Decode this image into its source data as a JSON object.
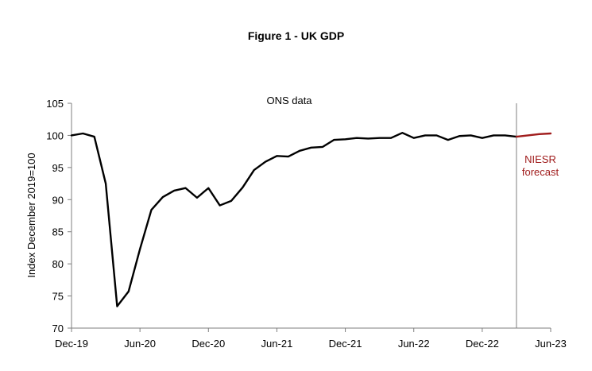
{
  "chart_data": {
    "type": "line",
    "title": "Figure 1 - UK GDP",
    "xlabel": "",
    "ylabel": "Index December 2019=100",
    "ylim": [
      70,
      105
    ],
    "yticks": [
      70,
      75,
      80,
      85,
      90,
      95,
      100,
      105
    ],
    "x_tick_labels": [
      "Dec-19",
      "Jun-20",
      "Dec-20",
      "Jun-21",
      "Dec-21",
      "Jun-22",
      "Dec-22",
      "Jun-23"
    ],
    "x_tick_months": [
      0,
      6,
      12,
      18,
      24,
      30,
      36,
      42
    ],
    "x_range_months": [
      0,
      42
    ],
    "divider_month": 39,
    "grid": false,
    "annotations": {
      "ons_label": "ONS data",
      "forecast_label_line1": "NIESR",
      "forecast_label_line2": "forecast"
    },
    "series": [
      {
        "name": "ONS data",
        "color": "#000000",
        "x_months": [
          0,
          1,
          2,
          3,
          4,
          5,
          6,
          7,
          8,
          9,
          10,
          11,
          12,
          13,
          14,
          15,
          16,
          17,
          18,
          19,
          20,
          21,
          22,
          23,
          24,
          25,
          26,
          27,
          28,
          29,
          30,
          31,
          32,
          33,
          34,
          35,
          36,
          37,
          38,
          39
        ],
        "values": [
          100.0,
          100.3,
          99.8,
          92.5,
          73.4,
          75.7,
          82.3,
          88.4,
          90.4,
          91.4,
          91.8,
          90.3,
          91.8,
          89.1,
          89.8,
          91.9,
          94.6,
          95.9,
          96.8,
          96.7,
          97.6,
          98.1,
          98.2,
          99.3,
          99.4,
          99.6,
          99.5,
          99.6,
          99.6,
          100.4,
          99.6,
          100.0,
          100.0,
          99.3,
          99.9,
          100.0,
          99.6,
          100.0,
          100.0,
          99.8
        ]
      },
      {
        "name": "NIESR forecast",
        "color": "#a01c1c",
        "x_months": [
          39,
          40,
          41,
          42
        ],
        "values": [
          99.8,
          100.0,
          100.2,
          100.3
        ]
      }
    ]
  }
}
